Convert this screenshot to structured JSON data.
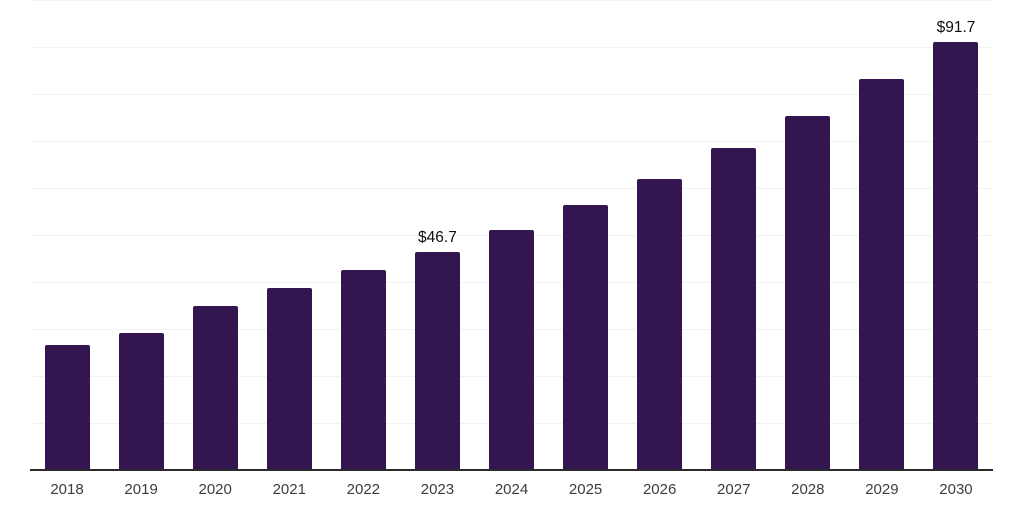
{
  "chart_data": {
    "type": "bar",
    "title": "",
    "xlabel": "",
    "ylabel": "",
    "categories": [
      "2018",
      "2019",
      "2020",
      "2021",
      "2022",
      "2023",
      "2024",
      "2025",
      "2026",
      "2027",
      "2028",
      "2029",
      "2030"
    ],
    "values": [
      26.8,
      29.4,
      35.1,
      39.0,
      42.9,
      46.7,
      51.5,
      56.7,
      62.4,
      69.0,
      75.9,
      83.8,
      91.7
    ],
    "value_labels": [
      "",
      "",
      "",
      "",
      "",
      "$46.7",
      "",
      "",
      "",
      "",
      "",
      "",
      "$91.7"
    ],
    "ylim": [
      0,
      100.7
    ],
    "gridline_step": 10,
    "grid": "horizontal",
    "legend": "none",
    "colors": {
      "bar": "#331650",
      "gridline": "#f1f1f1",
      "axis_line": "#2a2a2a",
      "tick_label": "#3d3d3d",
      "value_label": "#111111",
      "background": "#ffffff"
    }
  }
}
